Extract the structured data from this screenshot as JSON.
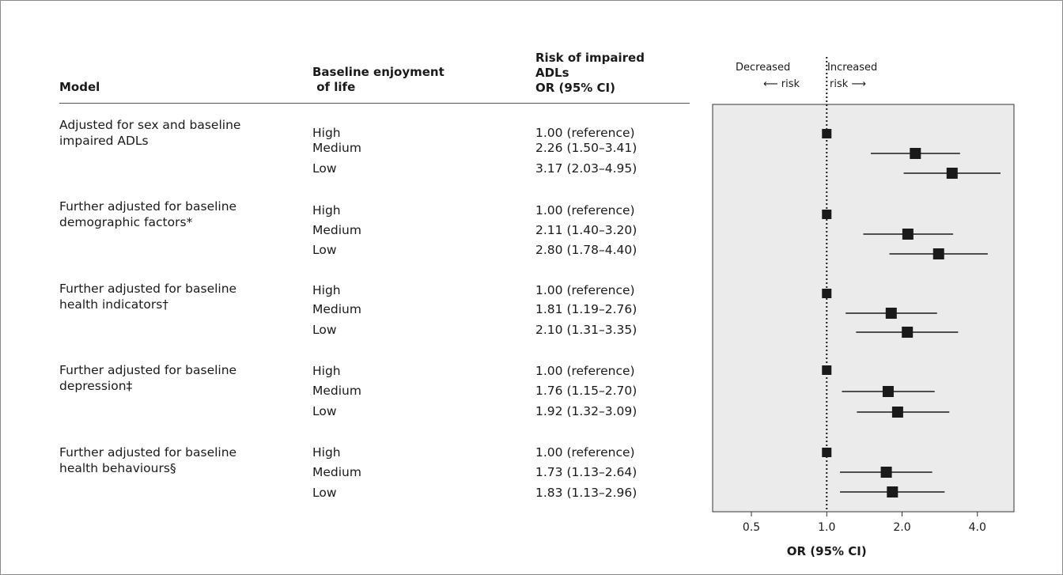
{
  "headers": {
    "model": "Model",
    "enjoyment_line1": "Baseline enjoyment",
    "enjoyment_line2": " of life",
    "risk_line1": "Risk of impaired",
    "risk_line2": "ADLs",
    "risk_line3": "OR (95% CI)"
  },
  "direction": {
    "decreased": "Decreased",
    "increased": "Increased",
    "left_risk": "⟵ risk",
    "right_risk": "risk ⟶"
  },
  "rows": [
    {
      "model": "Adjusted for sex and baseline\nimpaired ADLs",
      "levels": [
        "High",
        "Medium",
        "Low"
      ],
      "or_text": [
        "1.00 (reference)",
        "2.26 (1.50–3.41)",
        "3.17 (2.03–4.95)"
      ]
    },
    {
      "model": "Further adjusted for baseline\ndemographic factors*",
      "levels": [
        "High",
        "Medium",
        "Low"
      ],
      "or_text": [
        "1.00 (reference)",
        "2.11 (1.40–3.20)",
        "2.80 (1.78–4.40)"
      ]
    },
    {
      "model": "Further adjusted for baseline\nhealth indicators†",
      "levels": [
        "High",
        "Medium",
        "Low"
      ],
      "or_text": [
        "1.00 (reference)",
        "1.81 (1.19–2.76)",
        "2.10 (1.31–3.35)"
      ]
    },
    {
      "model": "Further adjusted for baseline\ndepression‡",
      "levels": [
        "High",
        "Medium",
        "Low"
      ],
      "or_text": [
        "1.00 (reference)",
        "1.76 (1.15–2.70)",
        "1.92 (1.32–3.09)"
      ]
    },
    {
      "model": "Further adjusted for baseline\nhealth behaviours§",
      "levels": [
        "High",
        "Medium",
        "Low"
      ],
      "or_text": [
        "1.00 (reference)",
        "1.73 (1.13–2.64)",
        "1.83 (1.13–2.96)"
      ]
    }
  ],
  "chart_data": {
    "type": "forest",
    "xlabel": "OR (95% CI)",
    "x_scale": "log2",
    "xlim": [
      0.35,
      5.6
    ],
    "xticks": [
      0.5,
      1.0,
      2.0,
      4.0
    ],
    "xtick_labels": [
      "0.5",
      "1.0",
      "2.0",
      "4.0"
    ],
    "reference_line": 1.0,
    "panel_background": "#ebebeb",
    "marker_color": "#1a1a1a",
    "points": [
      {
        "group": 0,
        "or": 1.0,
        "lo": null,
        "hi": null
      },
      {
        "group": 0,
        "or": 2.26,
        "lo": 1.5,
        "hi": 3.41
      },
      {
        "group": 0,
        "or": 3.17,
        "lo": 2.03,
        "hi": 4.95
      },
      {
        "group": 1,
        "or": 1.0,
        "lo": null,
        "hi": null
      },
      {
        "group": 1,
        "or": 2.11,
        "lo": 1.4,
        "hi": 3.2
      },
      {
        "group": 1,
        "or": 2.8,
        "lo": 1.78,
        "hi": 4.4
      },
      {
        "group": 2,
        "or": 1.0,
        "lo": null,
        "hi": null
      },
      {
        "group": 2,
        "or": 1.81,
        "lo": 1.19,
        "hi": 2.76
      },
      {
        "group": 2,
        "or": 2.1,
        "lo": 1.31,
        "hi": 3.35
      },
      {
        "group": 3,
        "or": 1.0,
        "lo": null,
        "hi": null
      },
      {
        "group": 3,
        "or": 1.76,
        "lo": 1.15,
        "hi": 2.7
      },
      {
        "group": 3,
        "or": 1.92,
        "lo": 1.32,
        "hi": 3.09
      },
      {
        "group": 4,
        "or": 1.0,
        "lo": null,
        "hi": null
      },
      {
        "group": 4,
        "or": 1.73,
        "lo": 1.13,
        "hi": 2.64
      },
      {
        "group": 4,
        "or": 1.83,
        "lo": 1.13,
        "hi": 2.96
      }
    ]
  }
}
